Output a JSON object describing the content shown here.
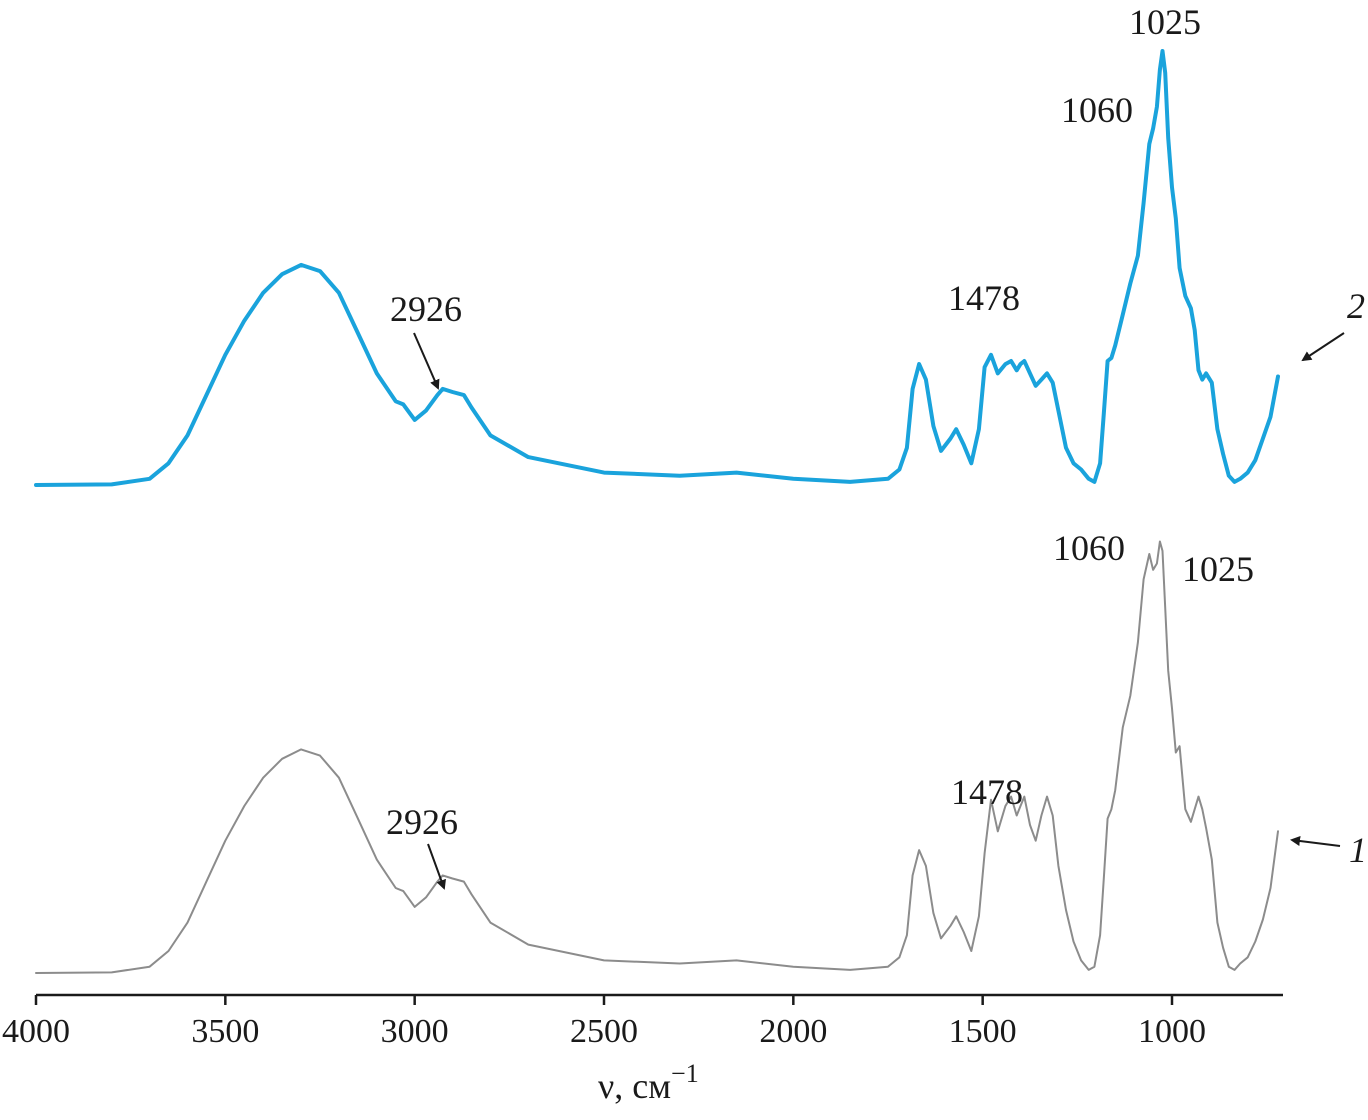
{
  "chart_data": {
    "type": "line",
    "title": "",
    "xlabel": "ν, см",
    "xlabel_superscript": "−1",
    "ylabel": "",
    "x_reversed": true,
    "xlim": [
      4000,
      700
    ],
    "xticks": [
      4000,
      3500,
      3000,
      2500,
      2000,
      1500,
      1000
    ],
    "xtick_labels": [
      "4000",
      "3500",
      "3000",
      "2500",
      "2000",
      "1500",
      "1000"
    ],
    "grid": false,
    "legend": "none",
    "series": [
      {
        "name": "2",
        "color": "#1aa3dc",
        "x": [
          4000,
          3800,
          3700,
          3650,
          3600,
          3550,
          3500,
          3450,
          3400,
          3350,
          3300,
          3250,
          3200,
          3150,
          3100,
          3050,
          3030,
          3000,
          2970,
          2940,
          2926,
          2900,
          2870,
          2850,
          2800,
          2700,
          2500,
          2300,
          2150,
          2000,
          1850,
          1750,
          1720,
          1700,
          1685,
          1668,
          1650,
          1630,
          1610,
          1585,
          1570,
          1550,
          1530,
          1510,
          1495,
          1478,
          1460,
          1440,
          1425,
          1410,
          1400,
          1390,
          1375,
          1360,
          1345,
          1330,
          1315,
          1300,
          1280,
          1260,
          1240,
          1220,
          1205,
          1190,
          1180,
          1170,
          1160,
          1150,
          1130,
          1110,
          1090,
          1075,
          1060,
          1050,
          1040,
          1032,
          1025,
          1018,
          1010,
          1000,
          990,
          980,
          965,
          950,
          940,
          930,
          920,
          910,
          895,
          880,
          865,
          850,
          835,
          820,
          800,
          780,
          760,
          740,
          720
        ],
        "y": [
          0,
          0.002,
          0.02,
          0.07,
          0.16,
          0.29,
          0.42,
          0.53,
          0.62,
          0.68,
          0.71,
          0.69,
          0.62,
          0.49,
          0.36,
          0.27,
          0.26,
          0.21,
          0.24,
          0.29,
          0.31,
          0.3,
          0.29,
          0.25,
          0.16,
          0.09,
          0.04,
          0.03,
          0.04,
          0.02,
          0.01,
          0.02,
          0.05,
          0.12,
          0.31,
          0.39,
          0.34,
          0.19,
          0.11,
          0.15,
          0.18,
          0.13,
          0.07,
          0.18,
          0.38,
          0.42,
          0.36,
          0.39,
          0.4,
          0.37,
          0.39,
          0.4,
          0.36,
          0.32,
          0.34,
          0.36,
          0.33,
          0.24,
          0.12,
          0.07,
          0.05,
          0.02,
          0.01,
          0.07,
          0.23,
          0.4,
          0.41,
          0.45,
          0.55,
          0.65,
          0.74,
          0.91,
          1.1,
          1.15,
          1.22,
          1.34,
          1.4,
          1.33,
          1.12,
          0.96,
          0.86,
          0.7,
          0.61,
          0.57,
          0.5,
          0.37,
          0.34,
          0.36,
          0.33,
          0.18,
          0.1,
          0.03,
          0.01,
          0.02,
          0.04,
          0.08,
          0.15,
          0.22,
          0.35
        ]
      },
      {
        "name": "1",
        "color": "#8c8c8c",
        "x": [
          4000,
          3800,
          3700,
          3650,
          3600,
          3550,
          3500,
          3450,
          3400,
          3350,
          3300,
          3250,
          3200,
          3150,
          3100,
          3050,
          3030,
          3000,
          2970,
          2940,
          2926,
          2900,
          2870,
          2850,
          2800,
          2700,
          2500,
          2300,
          2150,
          2000,
          1850,
          1750,
          1720,
          1700,
          1685,
          1668,
          1650,
          1630,
          1610,
          1585,
          1570,
          1550,
          1530,
          1510,
          1495,
          1478,
          1460,
          1440,
          1425,
          1410,
          1400,
          1390,
          1375,
          1360,
          1345,
          1330,
          1315,
          1300,
          1280,
          1260,
          1240,
          1220,
          1205,
          1190,
          1180,
          1170,
          1160,
          1150,
          1130,
          1110,
          1090,
          1075,
          1060,
          1050,
          1040,
          1032,
          1025,
          1018,
          1010,
          1000,
          990,
          980,
          965,
          950,
          940,
          930,
          920,
          910,
          895,
          880,
          865,
          850,
          835,
          820,
          800,
          780,
          760,
          740,
          720
        ],
        "y": [
          0,
          0.002,
          0.02,
          0.07,
          0.16,
          0.29,
          0.42,
          0.53,
          0.62,
          0.68,
          0.71,
          0.69,
          0.62,
          0.49,
          0.36,
          0.27,
          0.26,
          0.21,
          0.24,
          0.29,
          0.31,
          0.3,
          0.29,
          0.25,
          0.16,
          0.09,
          0.04,
          0.03,
          0.04,
          0.02,
          0.01,
          0.02,
          0.05,
          0.12,
          0.31,
          0.39,
          0.34,
          0.19,
          0.11,
          0.15,
          0.18,
          0.13,
          0.07,
          0.18,
          0.38,
          0.55,
          0.45,
          0.53,
          0.56,
          0.5,
          0.53,
          0.56,
          0.47,
          0.42,
          0.5,
          0.56,
          0.5,
          0.34,
          0.2,
          0.1,
          0.04,
          0.01,
          0.02,
          0.12,
          0.3,
          0.49,
          0.52,
          0.58,
          0.78,
          0.88,
          1.05,
          1.25,
          1.33,
          1.28,
          1.3,
          1.37,
          1.34,
          1.16,
          0.96,
          0.84,
          0.7,
          0.72,
          0.52,
          0.48,
          0.52,
          0.56,
          0.52,
          0.46,
          0.36,
          0.16,
          0.08,
          0.02,
          0.01,
          0.03,
          0.05,
          0.1,
          0.17,
          0.27,
          0.45
        ]
      }
    ],
    "annotations": [
      {
        "series": "2",
        "text": "1025",
        "x": 1025
      },
      {
        "series": "2",
        "text": "1060",
        "x": 1060
      },
      {
        "series": "2",
        "text": "1478",
        "x": 1478
      },
      {
        "series": "2",
        "text": "2926",
        "x": 2926,
        "arrow": true
      },
      {
        "series": "1",
        "text": "1060",
        "x": 1060
      },
      {
        "series": "1",
        "text": "1025",
        "x": 1025
      },
      {
        "series": "1",
        "text": "1478",
        "x": 1478
      },
      {
        "series": "1",
        "text": "2926",
        "x": 2926,
        "arrow": true
      }
    ],
    "curve_labels": [
      "2",
      "1"
    ]
  }
}
